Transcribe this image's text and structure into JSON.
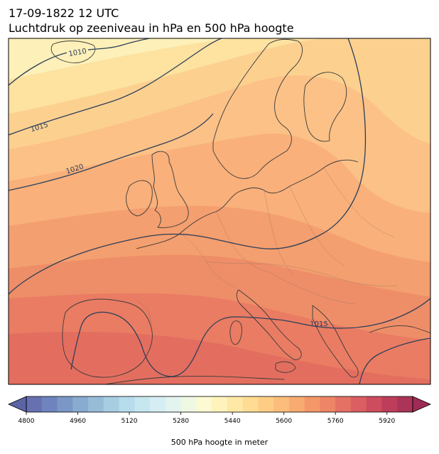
{
  "title": {
    "datetime": "17-09-1822 12 UTC",
    "subtitle": "Luchtdruk op zeeniveau in hPa en 500 hPa hoogte"
  },
  "map": {
    "isobar_labels": [
      "1010",
      "1015",
      "1020",
      "1015"
    ]
  },
  "colorbar": {
    "label": "500 hPa hoogte in meter",
    "tick_labels": [
      "4800",
      "4960",
      "5120",
      "5280",
      "5440",
      "5600",
      "5760",
      "5920"
    ],
    "range": [
      4800,
      6000
    ],
    "colors": [
      "#6770b0",
      "#6f84bd",
      "#7b97c6",
      "#88abd0",
      "#97bcd8",
      "#a7cde2",
      "#b7dceb",
      "#c6e6f0",
      "#d5eef3",
      "#e3f3ef",
      "#eff8e3",
      "#fbfad3",
      "#fff3bc",
      "#fee8a6",
      "#fedc93",
      "#fdcd86",
      "#fcbd7c",
      "#f8ab71",
      "#f49869",
      "#ee8566",
      "#e57064",
      "#da5e62",
      "#cd4c5d",
      "#bd3d5a",
      "#ab3458"
    ]
  },
  "fields": {
    "ocean_band_colors": [
      "#fdf0b8",
      "#fde2a0",
      "#fcd190",
      "#fbc186",
      "#f9b07a",
      "#f49f6f",
      "#ee8e68",
      "#e97c63",
      "#e36e5f"
    ],
    "isobar_color": "#2c3e5a",
    "coastline_color": "#3a3a3a"
  }
}
